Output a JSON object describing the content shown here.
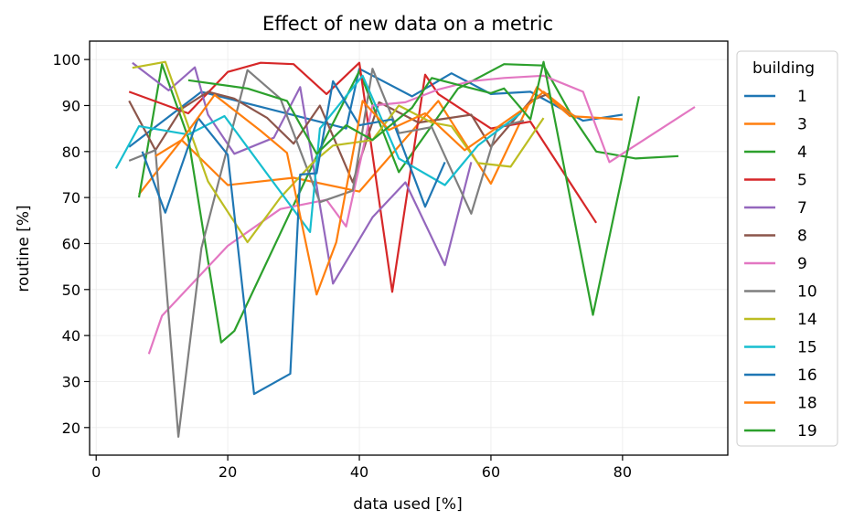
{
  "chart_data": {
    "type": "line",
    "title": "Effect of new data on a metric",
    "xlabel": "data used [%]",
    "ylabel": "routine [%]",
    "xlim": [
      -1,
      96
    ],
    "ylim": [
      14,
      104
    ],
    "x_ticks": [
      0,
      20,
      40,
      60,
      80
    ],
    "y_ticks": [
      20,
      30,
      40,
      50,
      60,
      70,
      80,
      90,
      100
    ],
    "grid": true,
    "legend": {
      "title": "building",
      "position": "outside-right"
    },
    "series": [
      {
        "name": "1",
        "color": "#1f77b4",
        "x": [
          5,
          16,
          38,
          40,
          48,
          54,
          60,
          66,
          74,
          80
        ],
        "y": [
          81,
          93,
          85,
          98,
          92,
          97,
          92.5,
          93,
          86.7,
          88
        ]
      },
      {
        "name": "3",
        "color": "#ff7f0e",
        "x": [
          6.5,
          13,
          20,
          30,
          40,
          52,
          60,
          67,
          72,
          80
        ],
        "y": [
          70.7,
          82.5,
          72.7,
          74.3,
          71.3,
          91,
          73,
          94,
          87.7,
          87
        ]
      },
      {
        "name": "4",
        "color": "#2ca02c",
        "x": [
          6.5,
          10,
          14,
          19,
          21,
          34,
          40,
          46,
          55,
          62,
          68,
          72,
          76,
          78,
          82,
          88.5
        ],
        "y": [
          70,
          99,
          83,
          38.5,
          41,
          80.5,
          97.5,
          75.5,
          93.7,
          99,
          98.7,
          88.5,
          80,
          79.5,
          78.5,
          79
        ]
      },
      {
        "name": "5",
        "color": "#d62728",
        "x": [
          5,
          14,
          20,
          25,
          30,
          35,
          40,
          45,
          50,
          52,
          60,
          66,
          76
        ],
        "y": [
          93,
          88.3,
          97.3,
          99.3,
          99,
          92.5,
          99.3,
          49.5,
          96.7,
          92.5,
          85,
          86.5,
          64.5
        ]
      },
      {
        "name": "7",
        "color": "#9467bd",
        "x": [
          5.5,
          11,
          15,
          17,
          21,
          27,
          31,
          36,
          42,
          47,
          53,
          57
        ],
        "y": [
          99.3,
          93.3,
          98.3,
          88,
          79.5,
          83,
          94,
          51.3,
          65.7,
          73.3,
          55.3,
          77.7
        ]
      },
      {
        "name": "8",
        "color": "#8c564b",
        "x": [
          5,
          9,
          13,
          17,
          21,
          26,
          30,
          34,
          39,
          43,
          49,
          57,
          60,
          66,
          69
        ],
        "y": [
          91,
          80.3,
          89.3,
          93,
          91.5,
          87.3,
          81.7,
          90,
          73.3,
          90.7,
          86.3,
          88,
          81,
          91,
          92.7
        ]
      },
      {
        "name": "9",
        "color": "#e377c2",
        "x": [
          8,
          10,
          20,
          28,
          35,
          38,
          42,
          47,
          52,
          57,
          62,
          68,
          74,
          78,
          91
        ],
        "y": [
          36,
          44.3,
          59.5,
          67.5,
          69.5,
          63.7,
          90,
          90.7,
          93.5,
          95.3,
          96,
          96.5,
          93,
          77.7,
          89.7
        ]
      },
      {
        "name": "10",
        "color": "#7f7f7f",
        "x": [
          5,
          9,
          12.5,
          16,
          23,
          28,
          34,
          39,
          42,
          46,
          51,
          57,
          61,
          65
        ],
        "y": [
          78,
          80.3,
          18,
          59,
          97.7,
          91.5,
          69,
          71.5,
          98,
          84,
          85.3,
          66.5,
          85.3,
          86.7
        ]
      },
      {
        "name": "14",
        "color": "#bcbd22",
        "x": [
          5.5,
          10.5,
          17,
          23,
          28,
          33,
          36,
          42,
          46,
          51,
          54,
          58,
          63,
          68
        ],
        "y": [
          98.2,
          99.5,
          73.5,
          60.3,
          70,
          77.7,
          81.3,
          82.5,
          90,
          86.3,
          85.5,
          77.5,
          76.7,
          87.3
        ]
      },
      {
        "name": "15",
        "color": "#17becf",
        "x": [
          3,
          6.5,
          14,
          19.5,
          32.5,
          34,
          40.5,
          46,
          53,
          58,
          64.5
        ],
        "y": [
          76.3,
          85.5,
          83.7,
          87.7,
          62.5,
          85,
          96.5,
          78.5,
          72.7,
          81.3,
          88.3
        ]
      },
      {
        "name": "16",
        "color": "#1f77b4",
        "x": [
          7,
          10.5,
          15.5,
          20,
          24,
          29.5,
          31,
          33.5,
          36,
          40,
          45,
          50,
          53
        ],
        "y": [
          80,
          66.7,
          87.3,
          79.3,
          27.3,
          31.7,
          75,
          75.3,
          95.3,
          85.7,
          87,
          68,
          77.7
        ]
      },
      {
        "name": "18",
        "color": "#ff7f0e",
        "x": [
          9,
          13,
          18,
          25,
          29,
          33.5,
          36.5,
          40.5,
          44.5,
          50,
          56,
          65,
          68,
          73
        ],
        "y": [
          79,
          82.5,
          92.3,
          84.5,
          79.7,
          48.9,
          60.3,
          91,
          84.7,
          88.3,
          80.3,
          89.3,
          93,
          87.3
        ]
      },
      {
        "name": "19",
        "color": "#2ca02c",
        "x": [
          14,
          23,
          29,
          33.5,
          38,
          42,
          48,
          51,
          55,
          60,
          62,
          66,
          68,
          75.5,
          82.5
        ],
        "y": [
          95.5,
          93.7,
          91,
          79.5,
          85.7,
          82.5,
          89.5,
          96,
          94.5,
          92.7,
          93.7,
          87,
          99.5,
          44.5,
          92
        ]
      }
    ]
  }
}
